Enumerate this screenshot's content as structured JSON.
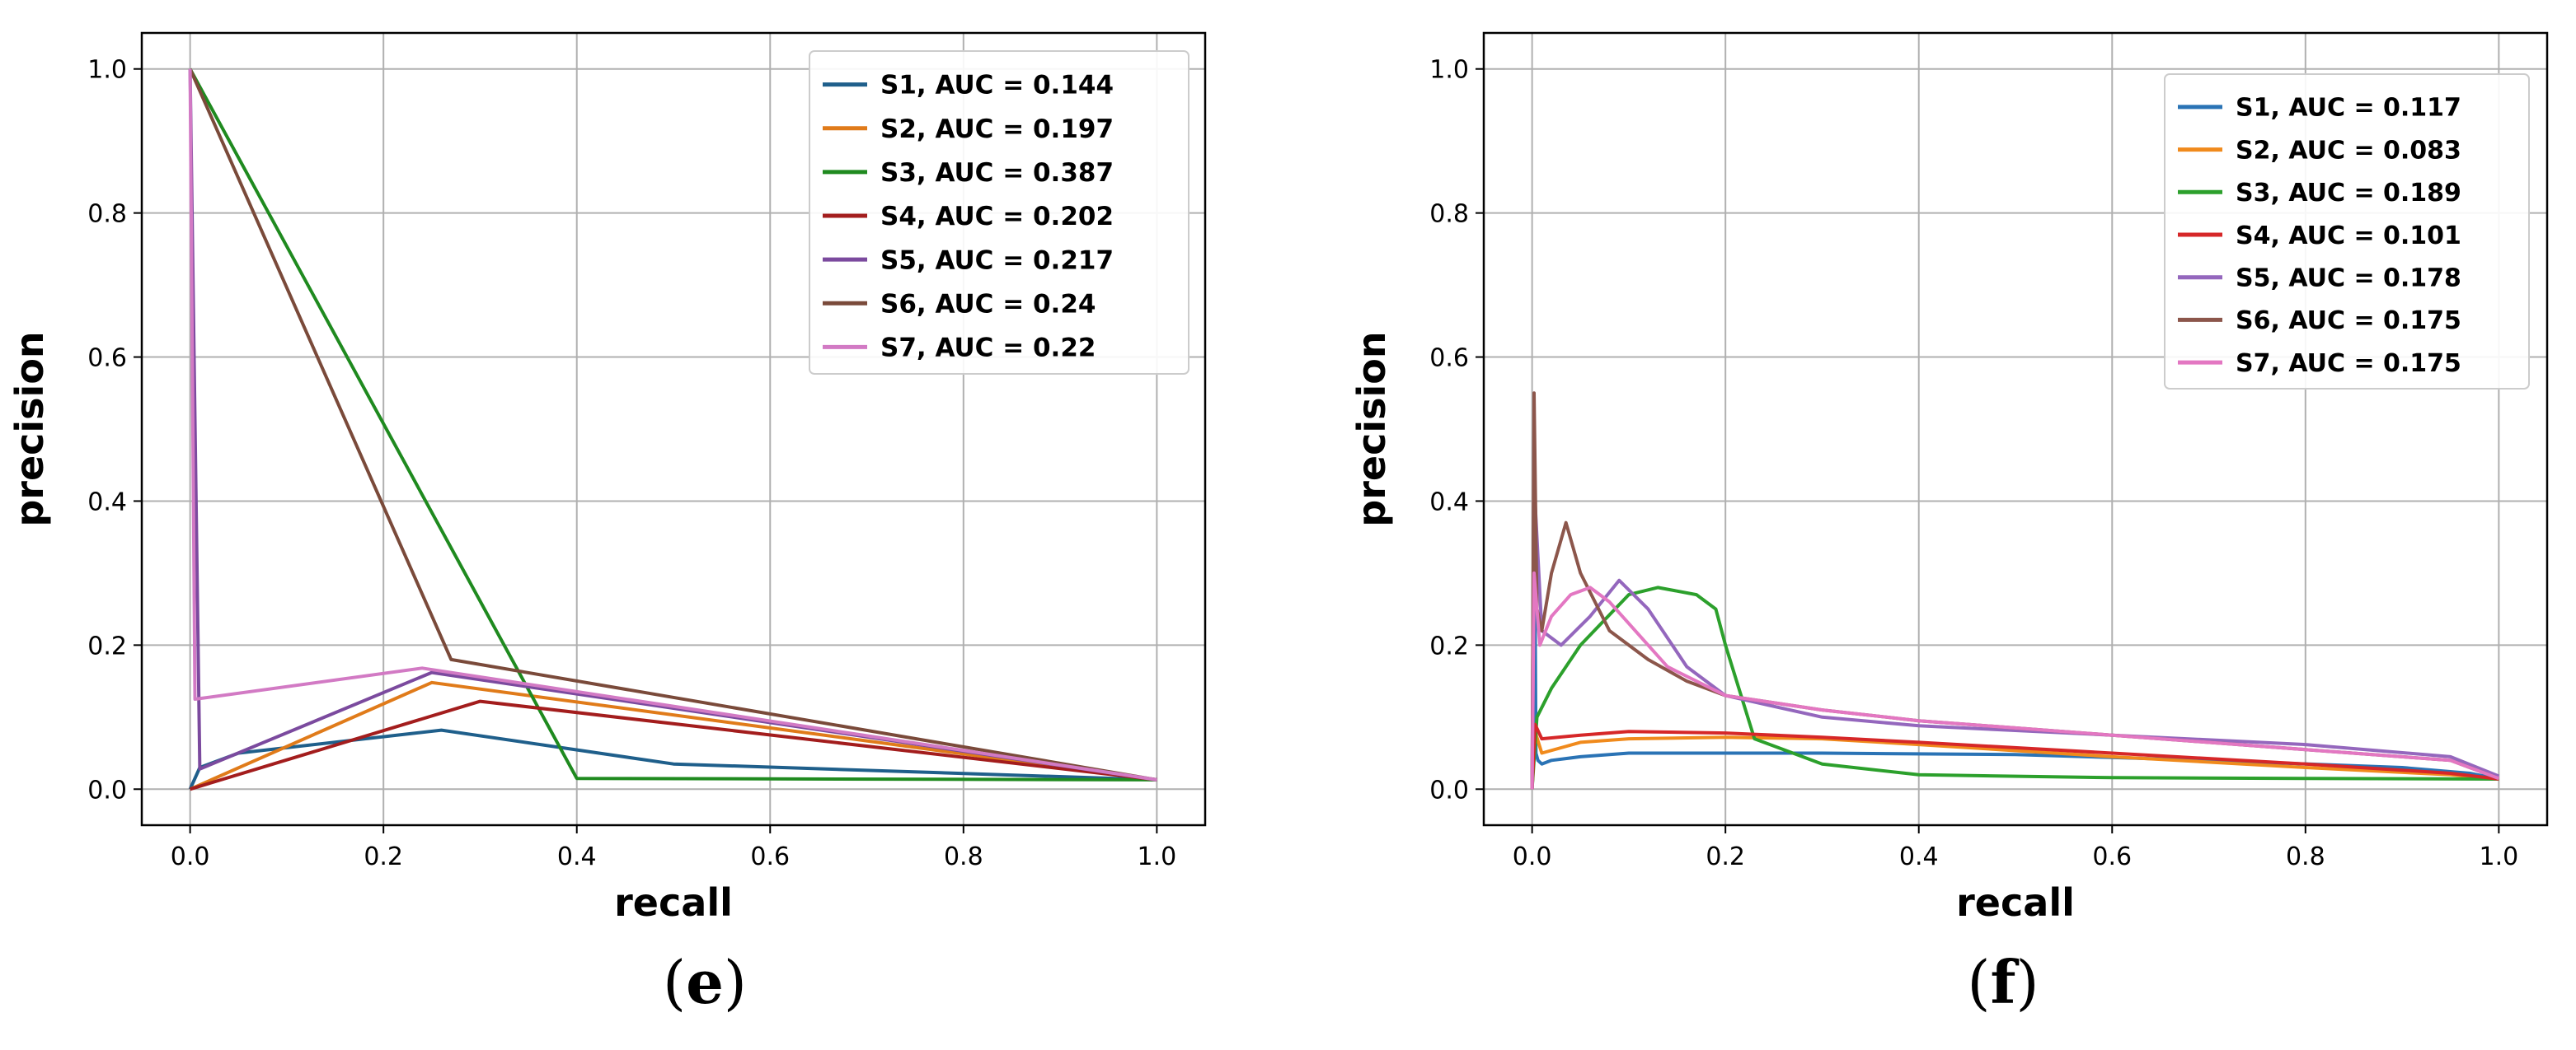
{
  "captions": {
    "left": "e",
    "right": "f"
  },
  "colors": {
    "S1": "#1f5f8b",
    "S2": "#e07b1a",
    "S3": "#1f8a1f",
    "S4": "#a31d1d",
    "S5": "#7b4a9e",
    "S6": "#7a4a3a",
    "S7": "#d27ac4",
    "S1_f": "#2a73b5",
    "S2_f": "#f08a1c",
    "S3_f": "#2ca02c",
    "S4_f": "#d62728",
    "S5_f": "#9467bd",
    "S6_f": "#8c564b",
    "S7_f": "#e377c2"
  },
  "chart_data": [
    {
      "type": "line",
      "panel": "e",
      "xlabel": "recall",
      "ylabel": "precision",
      "xlim": [
        -0.05,
        1.05
      ],
      "ylim": [
        -0.05,
        1.05
      ],
      "xticks": [
        "0.0",
        "0.2",
        "0.4",
        "0.6",
        "0.8",
        "1.0"
      ],
      "yticks": [
        "0.0",
        "0.2",
        "0.4",
        "0.6",
        "0.8",
        "1.0"
      ],
      "grid": true,
      "legend_position": "top-right",
      "series": [
        {
          "name": "S1, AUC = 0.144",
          "x": [
            0,
            0.01,
            0.05,
            0.26,
            0.5,
            1.0
          ],
          "y": [
            0,
            0.03,
            0.05,
            0.082,
            0.035,
            0.013
          ]
        },
        {
          "name": "S2, AUC = 0.197",
          "x": [
            0,
            0.25,
            1.0
          ],
          "y": [
            0,
            0.148,
            0.013
          ]
        },
        {
          "name": "S3, AUC = 0.387",
          "x": [
            0,
            0.4,
            1.0
          ],
          "y": [
            1.0,
            0.015,
            0.013
          ]
        },
        {
          "name": "S4, AUC = 0.202",
          "x": [
            0,
            0.3,
            1.0
          ],
          "y": [
            0,
            0.122,
            0.013
          ]
        },
        {
          "name": "S5, AUC = 0.217",
          "x": [
            0,
            0.01,
            0.25,
            1.0
          ],
          "y": [
            1.0,
            0.028,
            0.162,
            0.013
          ]
        },
        {
          "name": "S6, AUC = 0.24",
          "x": [
            0,
            0.27,
            1.0
          ],
          "y": [
            1.0,
            0.18,
            0.013
          ]
        },
        {
          "name": "S7, AUC = 0.22",
          "x": [
            0,
            0.005,
            0.24,
            1.0
          ],
          "y": [
            1.0,
            0.125,
            0.168,
            0.013
          ]
        }
      ]
    },
    {
      "type": "line",
      "panel": "f",
      "xlabel": "recall",
      "ylabel": "precision",
      "xlim": [
        -0.05,
        1.05
      ],
      "ylim": [
        -0.05,
        1.05
      ],
      "xticks": [
        "0.0",
        "0.2",
        "0.4",
        "0.6",
        "0.8",
        "1.0"
      ],
      "yticks": [
        "0.0",
        "0.2",
        "0.4",
        "0.6",
        "0.8",
        "1.0"
      ],
      "grid": true,
      "legend_position": "top-right",
      "series": [
        {
          "name": "S1, AUC = 0.117",
          "x": [
            0,
            0.002,
            0.004,
            0.006,
            0.01,
            0.02,
            0.05,
            0.1,
            0.2,
            0.3,
            0.5,
            0.7,
            0.9,
            0.97,
            1.0
          ],
          "y": [
            0,
            0.5,
            0.05,
            0.04,
            0.035,
            0.04,
            0.045,
            0.05,
            0.05,
            0.05,
            0.048,
            0.04,
            0.03,
            0.022,
            0.014
          ]
        },
        {
          "name": "S2, AUC = 0.083",
          "x": [
            0,
            0.003,
            0.01,
            0.05,
            0.1,
            0.2,
            0.3,
            0.4,
            0.6,
            0.8,
            0.95,
            1.0
          ],
          "y": [
            0,
            0.08,
            0.05,
            0.065,
            0.07,
            0.072,
            0.07,
            0.062,
            0.045,
            0.03,
            0.02,
            0.014
          ]
        },
        {
          "name": "S3, AUC = 0.189",
          "x": [
            0,
            0.005,
            0.02,
            0.05,
            0.1,
            0.13,
            0.17,
            0.19,
            0.2,
            0.23,
            0.3,
            0.4,
            0.6,
            0.8,
            1.0
          ],
          "y": [
            0,
            0.1,
            0.14,
            0.2,
            0.27,
            0.28,
            0.27,
            0.25,
            0.2,
            0.07,
            0.035,
            0.02,
            0.016,
            0.015,
            0.014
          ]
        },
        {
          "name": "S4, AUC = 0.101",
          "x": [
            0,
            0.003,
            0.01,
            0.05,
            0.1,
            0.2,
            0.3,
            0.4,
            0.6,
            0.8,
            0.95,
            1.0
          ],
          "y": [
            0,
            0.09,
            0.07,
            0.075,
            0.08,
            0.078,
            0.072,
            0.065,
            0.05,
            0.035,
            0.022,
            0.014
          ]
        },
        {
          "name": "S5, AUC = 0.178",
          "x": [
            0,
            0.003,
            0.01,
            0.03,
            0.06,
            0.09,
            0.12,
            0.16,
            0.2,
            0.3,
            0.4,
            0.6,
            0.8,
            0.95,
            1.0
          ],
          "y": [
            0,
            0.4,
            0.22,
            0.2,
            0.24,
            0.29,
            0.25,
            0.17,
            0.13,
            0.1,
            0.088,
            0.075,
            0.062,
            0.045,
            0.018
          ]
        },
        {
          "name": "S6, AUC = 0.175",
          "x": [
            0,
            0.002,
            0.005,
            0.01,
            0.02,
            0.035,
            0.05,
            0.08,
            0.12,
            0.16,
            0.2,
            0.3,
            0.4,
            0.6,
            0.8,
            0.95,
            1.0
          ],
          "y": [
            0,
            0.55,
            0.25,
            0.22,
            0.3,
            0.37,
            0.3,
            0.22,
            0.18,
            0.15,
            0.13,
            0.11,
            0.095,
            0.075,
            0.055,
            0.04,
            0.015
          ]
        },
        {
          "name": "S7, AUC = 0.175",
          "x": [
            0,
            0.002,
            0.008,
            0.02,
            0.04,
            0.06,
            0.08,
            0.1,
            0.14,
            0.2,
            0.3,
            0.4,
            0.6,
            0.8,
            0.95,
            1.0
          ],
          "y": [
            0,
            0.3,
            0.2,
            0.24,
            0.27,
            0.28,
            0.26,
            0.23,
            0.17,
            0.13,
            0.11,
            0.095,
            0.075,
            0.055,
            0.04,
            0.015
          ]
        }
      ]
    }
  ]
}
